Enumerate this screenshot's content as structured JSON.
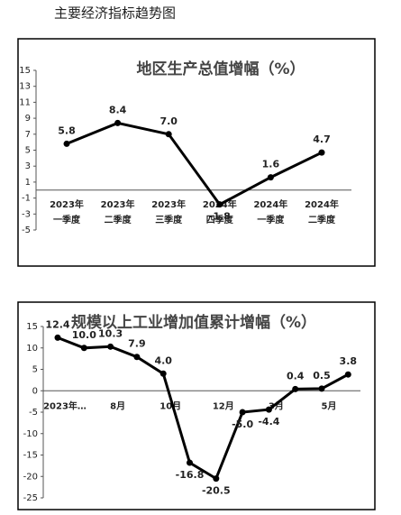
{
  "title": "主要经济指标趋势图",
  "chart_data": [
    {
      "type": "line",
      "title": "地区生产总值增幅（%）",
      "categories": [
        [
          "2023年",
          "一季度"
        ],
        [
          "2023年",
          "二季度"
        ],
        [
          "2023年",
          "三季度"
        ],
        [
          "2024年",
          "四季度"
        ],
        [
          "2024年",
          "一季度"
        ],
        [
          "2024年",
          "二季度"
        ]
      ],
      "values": [
        5.8,
        8.4,
        7.0,
        -1.8,
        1.6,
        4.7
      ],
      "value_labels": [
        "5.8",
        "8.4",
        "7.0",
        "-1.8",
        "1.6",
        "4.7"
      ],
      "color": "#000000",
      "ylim": [
        -5,
        15
      ],
      "yticks": [
        -5,
        -3,
        -1,
        1,
        3,
        5,
        7,
        9,
        11,
        13,
        15
      ]
    },
    {
      "type": "line",
      "title": "规模以上工业增加值累计增幅（%）",
      "categories": [
        "2023年…",
        null,
        "8月",
        null,
        "10月",
        null,
        "12月",
        null,
        "3月",
        null,
        "5月",
        null
      ],
      "values": [
        12.4,
        10.0,
        10.3,
        7.9,
        4.0,
        -16.8,
        -20.5,
        -5.0,
        -4.4,
        0.4,
        0.5,
        3.8
      ],
      "value_labels": [
        "12.4",
        "10.0",
        "10.3",
        "7.9",
        "4.0",
        "-16.8",
        "-20.5",
        "-5.0",
        "-4.4",
        "0.4",
        "0.5",
        "3.8"
      ],
      "color": "#000000",
      "ylim": [
        -25,
        15
      ],
      "yticks": [
        -25,
        -20,
        -15,
        -10,
        -5,
        0,
        5,
        10,
        15
      ]
    }
  ]
}
